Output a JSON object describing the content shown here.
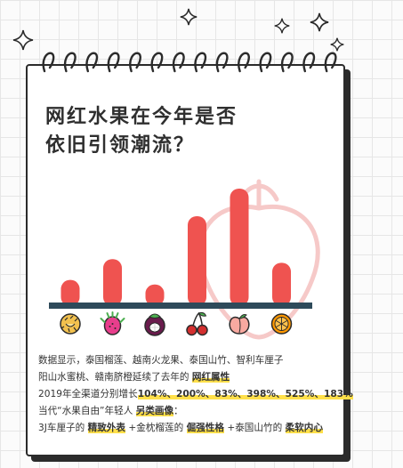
{
  "title": {
    "line1": "网红水果在今年是否",
    "line2": "依旧引领潮流？"
  },
  "chart_data": {
    "type": "bar",
    "categories": [
      "泰国榴莲",
      "越南火龙果",
      "泰国山竹",
      "智利车厘子",
      "阳山水蜜桃",
      "赣南脐橙"
    ],
    "values": [
      104,
      200,
      83,
      398,
      525,
      183
    ],
    "unit": "%",
    "title": "",
    "xlabel": "",
    "ylabel": "",
    "bar_color": "#ef5350",
    "baseline_color": "#2e4a5a"
  },
  "fruit_icons": [
    "durian-icon",
    "dragon-fruit-icon",
    "mangosteen-icon",
    "cherry-icon",
    "peach-icon",
    "orange-icon"
  ],
  "description": {
    "line1": "数据显示，泰国榴莲、越南火龙果、泰国山竹、智利车厘子",
    "line2_a": "阳山水蜜桃、赣南脐橙延续了去年的 ",
    "line2_hl": "网红属性",
    "line3_a": "2019年全渠道分别增长",
    "line3_b": "104%、200%、83%、398%、525%、183%",
    "line4_a": "当代“水果自由”年轻人 ",
    "line4_hl": "另类画像",
    "line4_b": "：",
    "line5_a": "3J车厘子的 ",
    "line5_hl1": "精致外表",
    "line5_b": " +金枕榴莲的 ",
    "line5_hl2": "倔强性格",
    "line5_c": " +泰国山竹的 ",
    "line5_hl3": "柔软内心"
  }
}
